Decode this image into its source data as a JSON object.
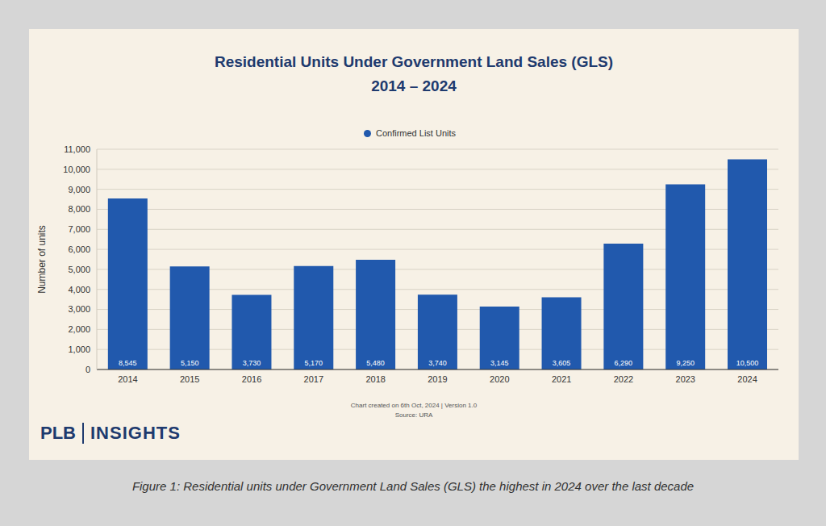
{
  "chart_data": {
    "type": "bar",
    "title": "Residential Units Under Government Land Sales (GLS)",
    "subtitle": "2014 – 2024",
    "ylabel": "Number of units",
    "categories": [
      "2014",
      "2015",
      "2016",
      "2017",
      "2018",
      "2019",
      "2020",
      "2021",
      "2022",
      "2023",
      "2024"
    ],
    "series": [
      {
        "name": "Confirmed List Units",
        "color": "#2159ad",
        "values": [
          8545,
          5150,
          3730,
          5170,
          5480,
          3740,
          3145,
          3605,
          6290,
          9250,
          10500
        ],
        "value_labels": [
          "8,545",
          "5,150",
          "3,730",
          "5,170",
          "5,480",
          "3,740",
          "3,145",
          "3,605",
          "6,290",
          "9,250",
          "10,500"
        ]
      }
    ],
    "ylim": [
      0,
      11000
    ],
    "yticks": [
      0,
      {
        "value": 1000,
        "label": "1,000"
      },
      {
        "value": 2000,
        "label": "2,000"
      },
      {
        "value": 3000,
        "label": "3,000"
      },
      {
        "value": 4000,
        "label": "4,000"
      },
      {
        "value": 5000,
        "label": "5,000"
      },
      {
        "value": 6000,
        "label": "6,000"
      },
      {
        "value": 7000,
        "label": "7,000"
      },
      {
        "value": 8000,
        "label": "8,000"
      },
      {
        "value": 9000,
        "label": "9,000"
      },
      {
        "value": 10000,
        "label": "10,000"
      },
      {
        "value": 11000,
        "label": "11,000"
      }
    ],
    "grid": true,
    "legend": "top",
    "data_labels": true
  },
  "footer": {
    "note": "Chart created on 6th Oct, 2024 | Version 1.0",
    "source": "Source: URA"
  },
  "logo": {
    "left": "PLB",
    "right": "INSIGHTS"
  },
  "caption": "Figure 1: Residential units under Government Land Sales (GLS) the highest in 2024 over the last decade"
}
